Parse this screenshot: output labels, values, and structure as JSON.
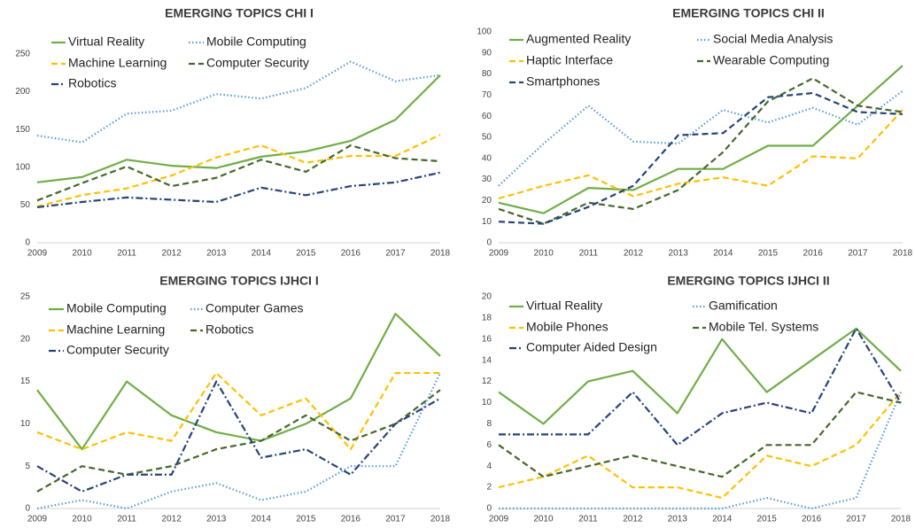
{
  "chart_data": [
    {
      "type": "line",
      "title": "EMERGING TOPICS CHI I",
      "categories": [
        "2009",
        "2010",
        "2011",
        "2012",
        "2013",
        "2014",
        "2015",
        "2016",
        "2017",
        "2018"
      ],
      "ylim": [
        0,
        250
      ],
      "yticks": [
        0,
        50,
        100,
        150,
        200,
        250
      ],
      "legend": "upper left",
      "series": [
        {
          "name": "Virtual Reality",
          "color": "#70ad47",
          "dash": "solid",
          "values": [
            80,
            87,
            110,
            102,
            99,
            114,
            121,
            135,
            163,
            222
          ]
        },
        {
          "name": "Mobile Computing",
          "color": "#5b9bd5",
          "dash": "dotted",
          "values": [
            142,
            133,
            171,
            175,
            197,
            191,
            205,
            240,
            214,
            222
          ]
        },
        {
          "name": "Machine Learning",
          "color": "#ffc000",
          "dash": "dashed",
          "values": [
            48,
            63,
            72,
            89,
            113,
            129,
            106,
            115,
            115,
            143
          ]
        },
        {
          "name": "Computer Security",
          "color": "#43682b",
          "dash": "dashed",
          "values": [
            56,
            79,
            101,
            75,
            86,
            110,
            94,
            129,
            112,
            108
          ]
        },
        {
          "name": "Robotics",
          "color": "#264478",
          "dash": "dashdot",
          "values": [
            47,
            54,
            60,
            57,
            54,
            73,
            63,
            75,
            80,
            93
          ]
        }
      ]
    },
    {
      "type": "line",
      "title": "EMERGING TOPICS CHI II",
      "categories": [
        "2009",
        "2010",
        "2011",
        "2012",
        "2013",
        "2014",
        "2015",
        "2016",
        "2017",
        "2018"
      ],
      "ylim": [
        0,
        100
      ],
      "yticks": [
        0,
        10,
        20,
        30,
        40,
        50,
        60,
        70,
        80,
        90,
        100
      ],
      "legend": "upper left",
      "series": [
        {
          "name": "Augmented Reality",
          "color": "#70ad47",
          "dash": "solid",
          "values": [
            19,
            14,
            26,
            25,
            35,
            35,
            46,
            46,
            65,
            84
          ]
        },
        {
          "name": "Social Media Analysis",
          "color": "#5b9bd5",
          "dash": "dotted",
          "values": [
            27,
            47,
            65,
            48,
            47,
            63,
            57,
            64,
            56,
            72
          ]
        },
        {
          "name": "Haptic Interface",
          "color": "#ffc000",
          "dash": "dashed",
          "values": [
            21,
            27,
            32,
            22,
            28,
            31,
            27,
            41,
            40,
            63
          ]
        },
        {
          "name": "Wearable Computing",
          "color": "#43682b",
          "dash": "dashed",
          "values": [
            16,
            9,
            19,
            16,
            25,
            43,
            67,
            78,
            65,
            62
          ]
        },
        {
          "name": "Smartphones",
          "color": "#264478",
          "dash": "dashed",
          "values": [
            10,
            9,
            17,
            27,
            51,
            52,
            69,
            71,
            62,
            61
          ]
        }
      ]
    },
    {
      "type": "line",
      "title": "EMERGING TOPICS IJHCI I",
      "categories": [
        "2009",
        "2010",
        "2011",
        "2012",
        "2013",
        "2014",
        "2015",
        "2016",
        "2017",
        "2018"
      ],
      "ylim": [
        0,
        25
      ],
      "yticks": [
        0,
        5,
        10,
        15,
        20,
        25
      ],
      "legend": "upper left",
      "series": [
        {
          "name": "Mobile Computing",
          "color": "#70ad47",
          "dash": "solid",
          "values": [
            14,
            7,
            15,
            11,
            9,
            8,
            10,
            13,
            23,
            18
          ]
        },
        {
          "name": "Computer Games",
          "color": "#5b9bd5",
          "dash": "dotted",
          "values": [
            0,
            1,
            0,
            2,
            3,
            1,
            2,
            5,
            5,
            16
          ]
        },
        {
          "name": "Machine Learning",
          "color": "#ffc000",
          "dash": "dashed",
          "values": [
            9,
            7,
            9,
            8,
            16,
            11,
            13,
            7,
            16,
            16
          ]
        },
        {
          "name": "Robotics",
          "color": "#43682b",
          "dash": "dashed",
          "values": [
            2,
            5,
            4,
            5,
            7,
            8,
            11,
            8,
            10,
            14
          ]
        },
        {
          "name": "Computer Security",
          "color": "#264478",
          "dash": "dashdot",
          "values": [
            5,
            2,
            4,
            4,
            15,
            6,
            7,
            4,
            10,
            13
          ]
        }
      ]
    },
    {
      "type": "line",
      "title": "EMERGING TOPICS IJHCI II",
      "categories": [
        "2009",
        "2010",
        "2011",
        "2012",
        "2013",
        "2014",
        "2015",
        "2016",
        "2017",
        "2018"
      ],
      "ylim": [
        0,
        20
      ],
      "yticks": [
        0,
        2,
        4,
        6,
        8,
        10,
        12,
        14,
        16,
        18,
        20
      ],
      "legend": "upper left",
      "series": [
        {
          "name": "Virtual Reality",
          "color": "#70ad47",
          "dash": "solid",
          "values": [
            11,
            8,
            12,
            13,
            9,
            16,
            11,
            14,
            17,
            13
          ]
        },
        {
          "name": "Gamification",
          "color": "#5b9bd5",
          "dash": "dotted",
          "values": [
            0,
            0,
            0,
            0,
            0,
            0,
            1,
            0,
            1,
            11
          ]
        },
        {
          "name": "Mobile Phones",
          "color": "#ffc000",
          "dash": "dashed",
          "values": [
            2,
            3,
            5,
            2,
            2,
            1,
            5,
            4,
            6,
            11
          ]
        },
        {
          "name": "Mobile Tel. Systems",
          "color": "#43682b",
          "dash": "dashed",
          "values": [
            6,
            3,
            4,
            5,
            4,
            3,
            6,
            6,
            11,
            10
          ]
        },
        {
          "name": "Computer Aided Design",
          "color": "#264478",
          "dash": "dashdot",
          "values": [
            7,
            7,
            7,
            11,
            6,
            9,
            10,
            9,
            17,
            10
          ]
        }
      ]
    }
  ]
}
